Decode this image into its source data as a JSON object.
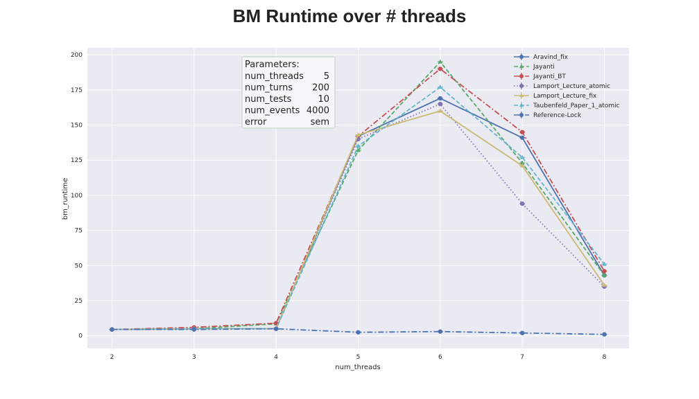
{
  "chart_data": {
    "type": "line",
    "title": "BM Runtime over # threads",
    "xlabel": "num_threads",
    "ylabel": "bm_runtime",
    "x": [
      2,
      3,
      4,
      5,
      6,
      7,
      8
    ],
    "xticks": [
      "2",
      "3",
      "4",
      "5",
      "6",
      "7",
      "8"
    ],
    "yticks": [
      "0",
      "25",
      "50",
      "75",
      "100",
      "125",
      "150",
      "175",
      "200"
    ],
    "xlim": [
      1.7,
      8.3
    ],
    "ylim": [
      -9,
      205
    ],
    "grid": true,
    "background": "#eaeaf2",
    "legend_position": "top-right",
    "series": [
      {
        "name": "Aravind_fix",
        "color": "#4c72b0",
        "dash": "solid",
        "marker": "circle",
        "values": [
          4.5,
          5,
          5,
          142,
          169,
          141,
          43
        ]
      },
      {
        "name": "Jayanti",
        "color": "#55a868",
        "dash": "dashed",
        "marker": "triangle",
        "values": [
          4.5,
          5,
          8.5,
          132,
          195,
          123,
          43
        ]
      },
      {
        "name": "Jayanti_BT",
        "color": "#c44e52",
        "dash": "dashdot",
        "marker": "circle",
        "values": [
          4.5,
          6,
          9,
          142,
          190,
          145,
          46
        ]
      },
      {
        "name": "Lamport_Lecture_atomic",
        "color": "#8172b2",
        "dash": "dotted",
        "marker": "circle",
        "values": [
          4.5,
          5,
          5,
          140,
          165,
          94,
          35
        ]
      },
      {
        "name": "Lamport_Lecture_fix",
        "color": "#ccb974",
        "dash": "solid",
        "marker": "triangle",
        "values": [
          4.5,
          5,
          5,
          143,
          160,
          121,
          36
        ]
      },
      {
        "name": "Taubenfeld_Paper_1_atomic",
        "color": "#64b5cd",
        "dash": "dashed",
        "marker": "triangle",
        "values": [
          4.5,
          5,
          5,
          135,
          177,
          127,
          51
        ]
      },
      {
        "name": "Reference-Lock",
        "color": "#4c72b0",
        "dash": "dashdot",
        "marker": "circle",
        "values": [
          4.5,
          4.5,
          5,
          2.5,
          3,
          2,
          1
        ]
      }
    ],
    "parameters_box": {
      "header": "Parameters:",
      "rows": [
        {
          "key": "num_threads",
          "value": "5"
        },
        {
          "key": "num_turns",
          "value": "200"
        },
        {
          "key": "num_tests",
          "value": "10"
        },
        {
          "key": "num_events",
          "value": "4000"
        },
        {
          "key": "error",
          "value": "sem"
        }
      ]
    }
  }
}
